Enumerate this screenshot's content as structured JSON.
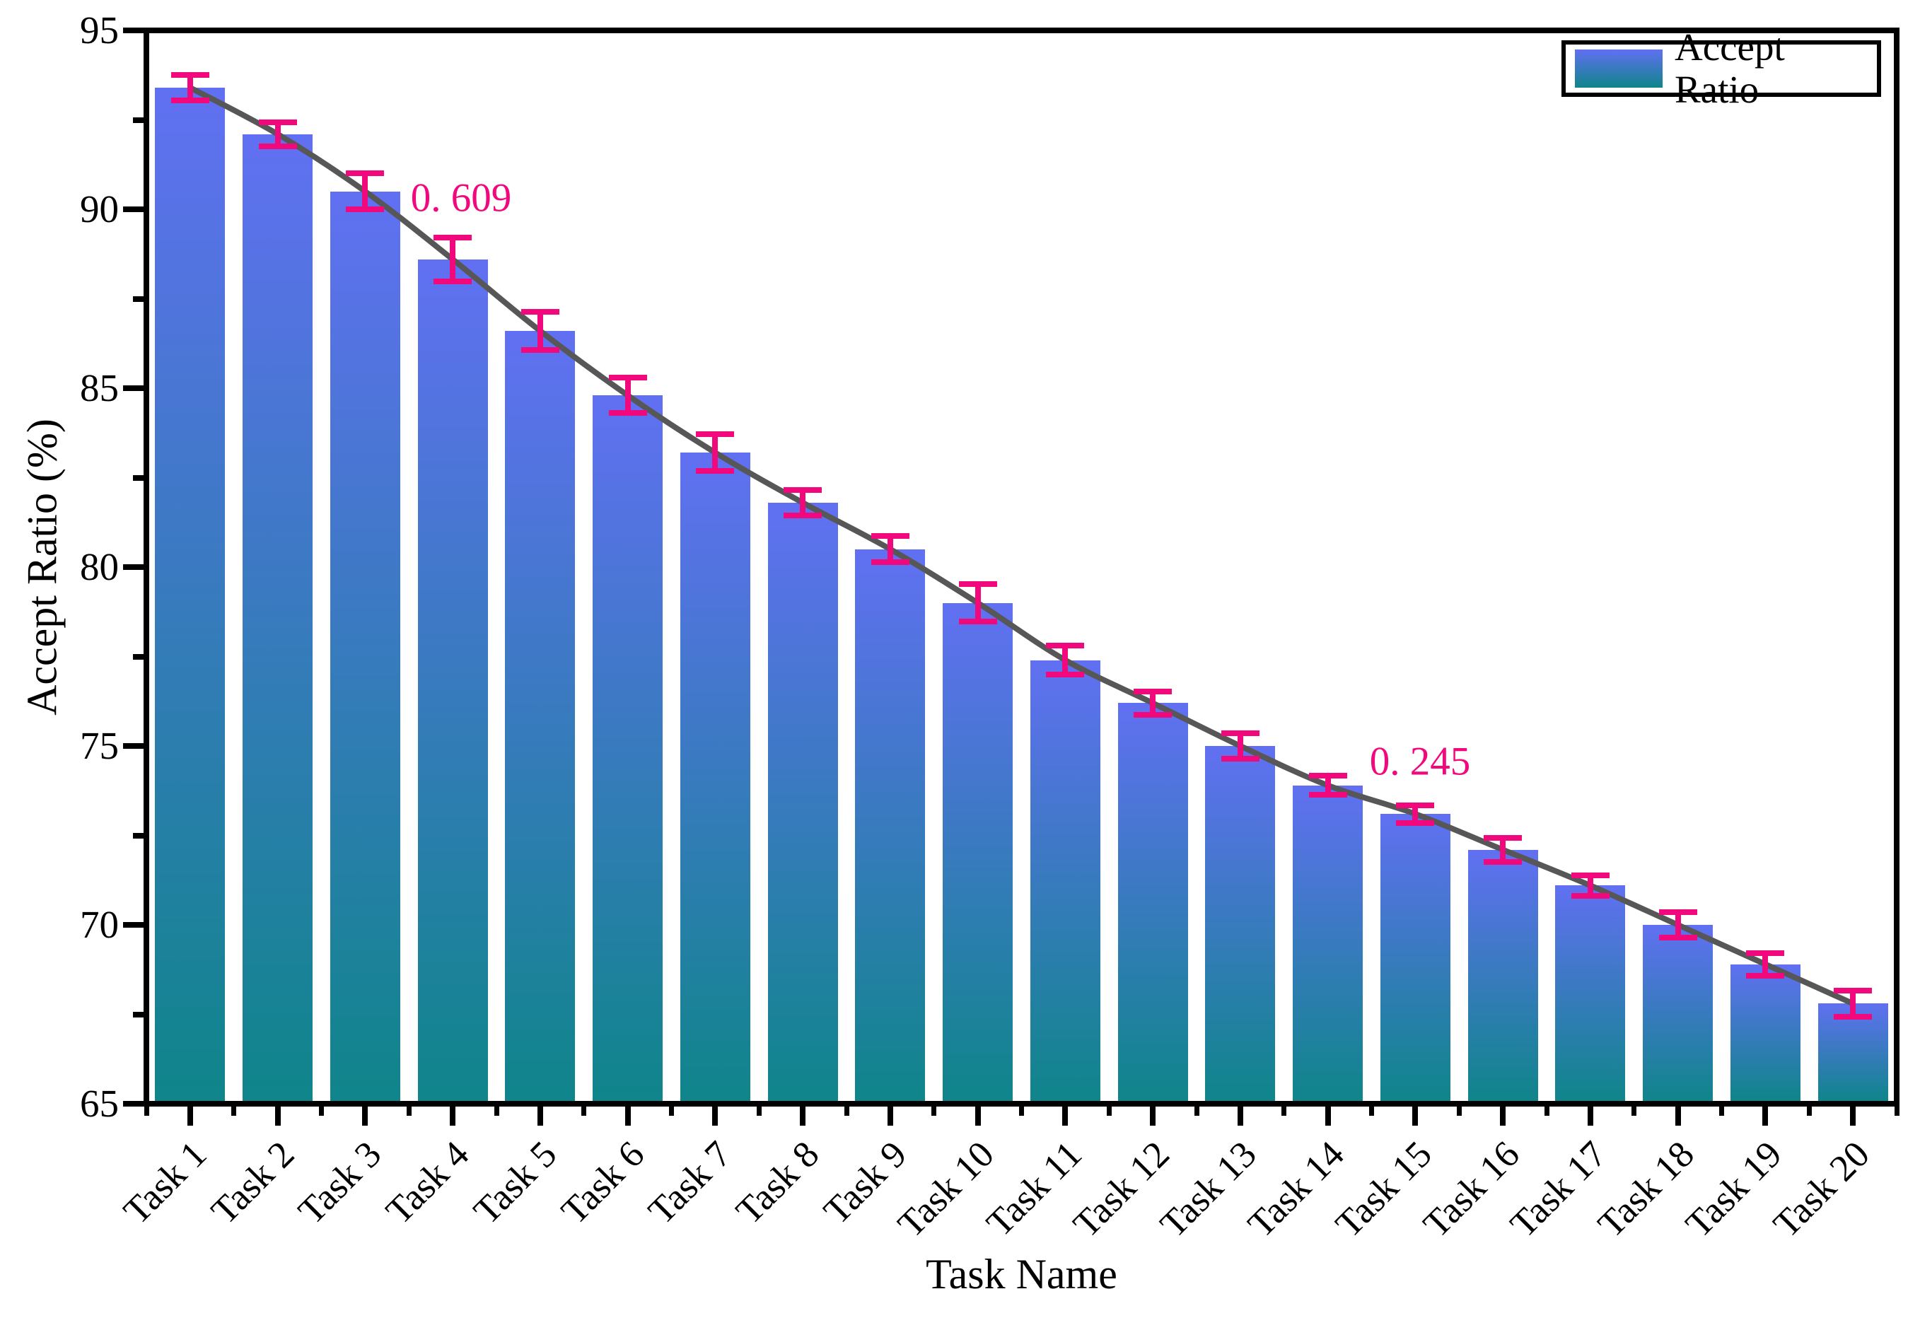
{
  "figure": {
    "background": "#FFFFFF"
  },
  "chart_data": {
    "type": "bar",
    "title": "",
    "xlabel": "Task Name",
    "ylabel": "Accept Ratio (%)",
    "categories": [
      "Task 1",
      "Task 2",
      "Task 3",
      "Task 4",
      "Task 5",
      "Task 6",
      "Task 7",
      "Task 8",
      "Task 9",
      "Task 10",
      "Task 11",
      "Task 12",
      "Task 13",
      "Task 14",
      "Task 15",
      "Task 16",
      "Task 17",
      "Task 18",
      "Task 19",
      "Task 20"
    ],
    "values": [
      93.4,
      92.1,
      90.5,
      88.6,
      86.6,
      84.8,
      83.2,
      81.8,
      80.5,
      79.0,
      77.4,
      76.2,
      75.0,
      73.9,
      73.1,
      72.1,
      71.1,
      70.0,
      68.9,
      67.8
    ],
    "errors": [
      0.36,
      0.34,
      0.5,
      0.609,
      0.54,
      0.49,
      0.52,
      0.36,
      0.37,
      0.52,
      0.4,
      0.33,
      0.35,
      0.27,
      0.245,
      0.34,
      0.28,
      0.36,
      0.32,
      0.37
    ],
    "ylim": [
      65,
      95
    ],
    "y_major_ticks": [
      65,
      70,
      75,
      80,
      85,
      90,
      95
    ],
    "y_minor_ticks": [
      67.5,
      72.5,
      77.5,
      82.5,
      87.5,
      92.5
    ],
    "grid": false,
    "legend": {
      "label": "Accept Ratio",
      "position": "top-right"
    },
    "trend_line": "smooth line connecting bar tops",
    "annotations": [
      {
        "text": "0. 609",
        "task": "Task 4",
        "x": 652,
        "y": 280
      },
      {
        "text": "0. 245",
        "task": "Task 15",
        "x": 2008,
        "y": 1077
      }
    ]
  },
  "colors": {
    "bar_gradient_top": "#6170F2",
    "bar_gradient_bottom": "#0F858A",
    "error_bar": "#F2087D",
    "annotation_text": "#F2087D",
    "trend_line": "#575757",
    "axis": "#000000",
    "background": "#FFFFFF"
  }
}
